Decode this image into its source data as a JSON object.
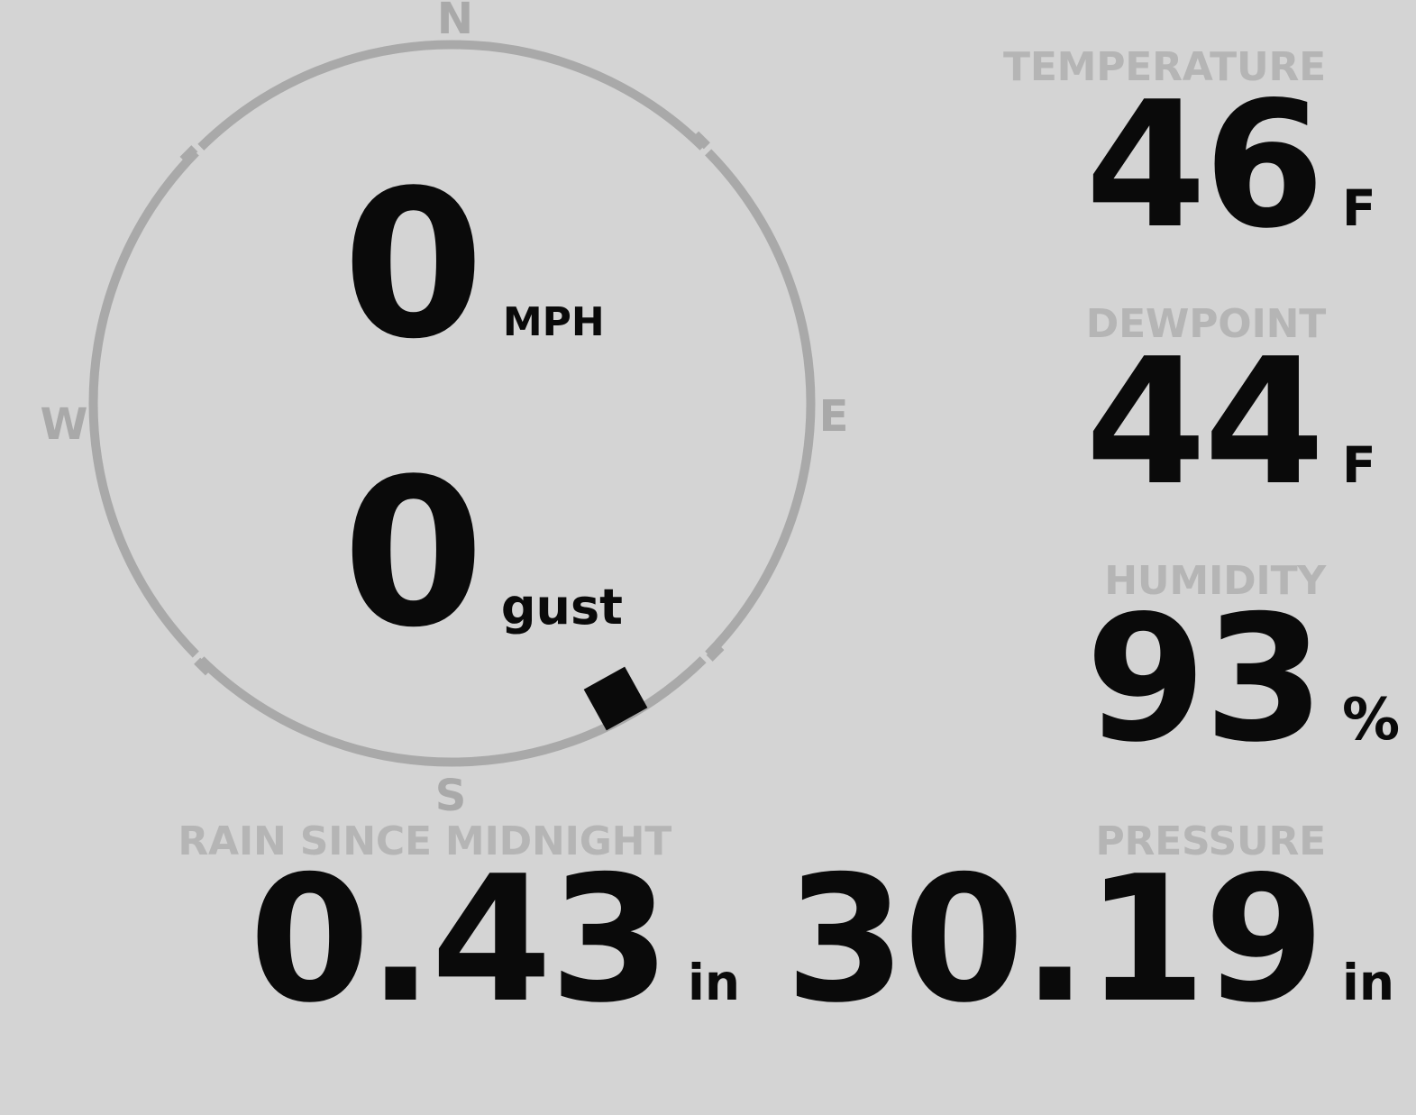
{
  "theme": {
    "colors": {
      "bg": "#d4d4d4",
      "compass": "#a9a9a9",
      "label": "#b5b5b5",
      "ink": "#0a0a0a"
    }
  },
  "compass": {
    "cardinals": {
      "north": "N",
      "east": "E",
      "south": "S",
      "west": "W"
    },
    "wind_speed": {
      "value": "0",
      "unit": "MPH"
    },
    "wind_gust": {
      "value": "0",
      "unit": "gust"
    },
    "marker": {
      "bearing_deg": 151
    }
  },
  "panels": {
    "temperature": {
      "label": "TEMPERATURE",
      "value": "46",
      "unit": "F"
    },
    "dewpoint": {
      "label": "DEWPOINT",
      "value": "44",
      "unit": "F"
    },
    "humidity": {
      "label": "HUMIDITY",
      "value": "93",
      "unit": "%"
    },
    "rain": {
      "label": "RAIN SINCE MIDNIGHT",
      "value": "0.43",
      "unit": "in"
    },
    "pressure": {
      "label": "PRESSURE",
      "value": "30.19",
      "unit": "in"
    }
  }
}
